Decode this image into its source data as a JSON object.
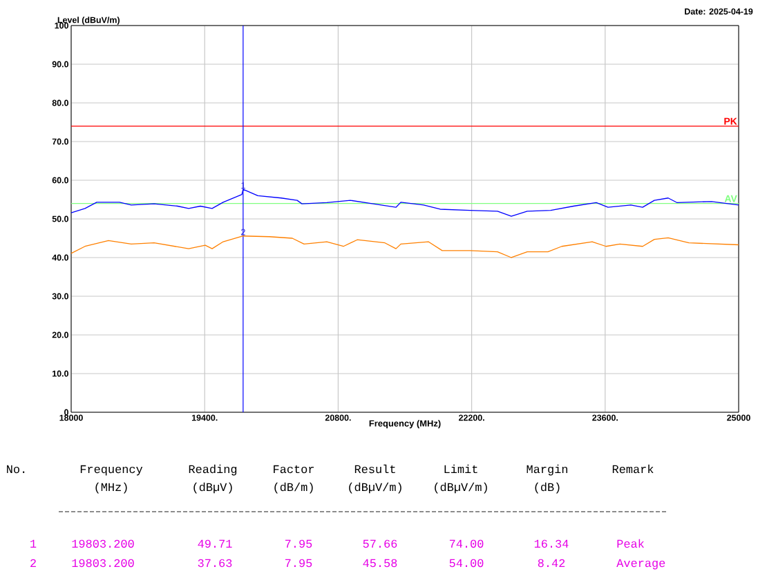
{
  "chart_data": {
    "type": "line",
    "ylabel": "Level (dBuV/m)",
    "xlabel": "Frequency (MHz)",
    "xlim": [
      18000,
      25000
    ],
    "ylim": [
      0,
      100
    ],
    "xticks": [
      18000,
      {
        "value": 19400,
        "label": "19400."
      },
      {
        "value": 20800,
        "label": "20800."
      },
      {
        "value": 22200,
        "label": "22200."
      },
      {
        "value": 23600,
        "label": "23600."
      },
      25000
    ],
    "yticks": [
      0,
      {
        "value": 10,
        "label": "10.0"
      },
      {
        "value": 20,
        "label": "20.0"
      },
      {
        "value": 30,
        "label": "30.0"
      },
      {
        "value": 40,
        "label": "40.0"
      },
      {
        "value": 50,
        "label": "50.0"
      },
      {
        "value": 60,
        "label": "60.0"
      },
      {
        "value": 70,
        "label": "70.0"
      },
      {
        "value": 80,
        "label": "80.0"
      },
      {
        "value": 90,
        "label": "90.0"
      },
      100
    ],
    "grid": true,
    "series": [
      {
        "color": "#0000ff",
        "x": [
          18000,
          18145,
          18268,
          18507,
          18630,
          18870,
          19116,
          19232,
          19355,
          19478,
          19594,
          19790,
          19803.2,
          19957,
          20203,
          20370,
          20420,
          20681,
          20928,
          21167,
          21406,
          21457,
          21696,
          21870,
          22181,
          22471,
          22616,
          22783,
          23029,
          23268,
          23507,
          23630,
          23870,
          23993,
          24116,
          24261,
          24355,
          24717,
          25000
        ],
        "values": [
          51.6,
          52.7,
          54.3,
          54.3,
          53.6,
          53.9,
          53.3,
          52.7,
          53.3,
          52.7,
          54.3,
          56.3,
          57.66,
          56,
          55.4,
          54.8,
          53.9,
          54.2,
          54.8,
          53.9,
          53,
          54.3,
          53.6,
          52.5,
          52.2,
          52,
          50.7,
          52,
          52.2,
          53.3,
          54.2,
          53,
          53.6,
          53,
          54.8,
          55.4,
          54.2,
          54.5,
          53.6
        ]
      },
      {
        "color": "#ff8000",
        "x": [
          18000,
          18145,
          18391,
          18630,
          18870,
          19232,
          19406,
          19478,
          19594,
          19803.2,
          20080,
          20319,
          20442,
          20681,
          20855,
          21000,
          21290,
          21406,
          21457,
          21746,
          21891,
          22181,
          22471,
          22616,
          22783,
          23000,
          23145,
          23464,
          23609,
          23754,
          23993,
          24116,
          24261,
          24478,
          25000
        ],
        "values": [
          41.1,
          42.9,
          44.4,
          43.5,
          43.8,
          42.3,
          43.2,
          42.3,
          44.1,
          45.58,
          45.4,
          45,
          43.5,
          44.1,
          42.9,
          44.6,
          43.8,
          42.3,
          43.5,
          44.1,
          41.8,
          41.8,
          41.5,
          40,
          41.5,
          41.5,
          42.9,
          44.1,
          42.9,
          43.5,
          42.9,
          44.7,
          45.1,
          43.8,
          43.3
        ]
      }
    ],
    "ref_lines": [
      {
        "axis": "y",
        "value": 74,
        "label": "PK",
        "color": "#ff0000"
      },
      {
        "axis": "y",
        "value": 54,
        "label": "AV",
        "color": "#80ff80"
      },
      {
        "axis": "x",
        "value": 19803.2,
        "color": "#0000ff"
      }
    ],
    "annotations": [
      "Date: 2025-04-19",
      {
        "text": "1",
        "x": 19803.2,
        "y": 57.66
      },
      {
        "text": "2",
        "x": 19803.2,
        "y": 45.58
      },
      "No.",
      "Frequency",
      "Reading",
      "Factor",
      "Result",
      "Limit",
      "Margin",
      "Remark",
      "(MHz)",
      "(dBµV)",
      "(dB/m)",
      "(dBµV/m)",
      "(dBµV/m)",
      "(dB)",
      "1",
      "19803.200",
      "49.71",
      "7.95",
      "57.66",
      "74.00",
      "16.34",
      "Peak",
      "2",
      "19803.200",
      "37.63",
      "7.95",
      "45.58",
      "54.00",
      "8.42",
      "Average"
    ]
  }
}
